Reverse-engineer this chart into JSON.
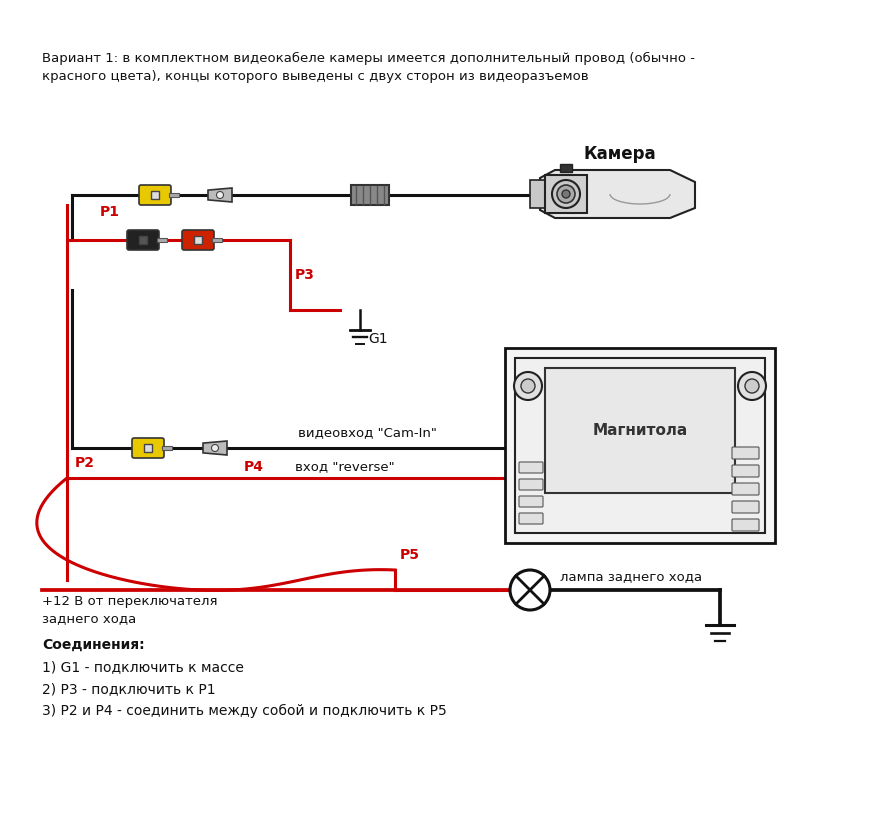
{
  "title_line1": "Вариант 1: в комплектном видеокабеле камеры имеется дополнительный провод (обычно -",
  "title_line2": "красного цвета), концы которого выведены с двух сторон из видеоразъемов",
  "label_camera": "Камера",
  "label_magnitola": "Магнитола",
  "label_lamp": "лампа заднего хода",
  "label_plus12": "+12 В от переключателя",
  "label_zadnego": "заднего хода",
  "label_videovhod": "видеовход \"Cam-In\"",
  "label_vhod_reverse": "вход \"reverse\"",
  "label_G1": "G1",
  "label_P1": "P1",
  "label_P2": "P2",
  "label_P3": "P3",
  "label_P4": "P4",
  "label_P5": "P5",
  "connections_title": "Соединения:",
  "connection1": "1) G1 - подключить к массе",
  "connection2": "2) Р3 - подключить к Р1",
  "connection3": "3) Р2 и Р4 - соединить между собой и подключить к Р5",
  "bg_color": "#ffffff",
  "wire_black": "#111111",
  "wire_red": "#cc0000",
  "col_yellow": "#e8c800",
  "col_red_conn": "#cc2200",
  "col_black_conn": "#222222",
  "col_gray_conn": "#999999",
  "col_outline": "#222222"
}
